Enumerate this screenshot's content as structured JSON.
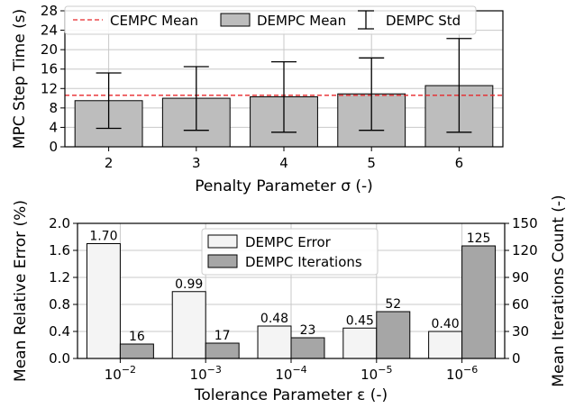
{
  "colors": {
    "cempc_line": "#e8282b",
    "dempc_mean_bar": "#bdbdbd",
    "error_bar": "#f4f4f4",
    "iter_bar": "#a6a6a6",
    "grid": "#c8c8c8",
    "edge": "#000000"
  },
  "chart_data": [
    {
      "type": "bar",
      "categories": [
        "2",
        "3",
        "4",
        "5",
        "6"
      ],
      "series": [
        {
          "name": "DEMPC Mean",
          "values": [
            9.5,
            10.0,
            10.3,
            10.9,
            12.6
          ]
        },
        {
          "name": "DEMPC Std",
          "lower": [
            3.8,
            3.4,
            3.0,
            3.4,
            3.0
          ],
          "upper": [
            15.2,
            16.5,
            17.5,
            18.3,
            22.3
          ]
        }
      ],
      "reference_line": {
        "name": "CEMPC Mean",
        "value": 10.6
      },
      "xlabel": "Penalty Parameter σ (-)",
      "ylabel": "MPC Step Time (s)",
      "ylim": [
        0,
        28
      ],
      "yticks": [
        "0",
        "4",
        "8",
        "12",
        "16",
        "20",
        "24",
        "28"
      ],
      "grid": true,
      "legend_placement": "top",
      "legend_labels": [
        "CEMPC Mean",
        "DEMPC Mean",
        "DEMPC Std"
      ]
    },
    {
      "type": "bar",
      "categories": [
        "−2",
        "−3",
        "−4",
        "−5",
        "−6"
      ],
      "category_base": "10",
      "series": [
        {
          "name": "DEMPC Error",
          "axis": "left",
          "values": [
            1.7,
            0.99,
            0.48,
            0.45,
            0.4
          ],
          "labels": [
            "1.70",
            "0.99",
            "0.48",
            "0.45",
            "0.40"
          ]
        },
        {
          "name": "DEMPC Iterations",
          "axis": "right",
          "values": [
            16,
            17,
            23,
            52,
            125
          ],
          "labels": [
            "16",
            "17",
            "23",
            "52",
            "125"
          ]
        }
      ],
      "xlabel": "Tolerance Parameter ε (-)",
      "ylabel": "Mean Relative Error (%)",
      "y2label": "Mean Iterations Count (-)",
      "ylim": [
        0,
        2.0
      ],
      "y2lim": [
        0,
        150
      ],
      "yticks": [
        "0.0",
        "0.4",
        "0.8",
        "1.2",
        "1.6",
        "2.0"
      ],
      "y2ticks": [
        "0",
        "30",
        "60",
        "90",
        "120",
        "150"
      ],
      "grid": true,
      "legend_placement": "top-center",
      "legend_labels": [
        "DEMPC Error",
        "DEMPC Iterations"
      ]
    }
  ]
}
